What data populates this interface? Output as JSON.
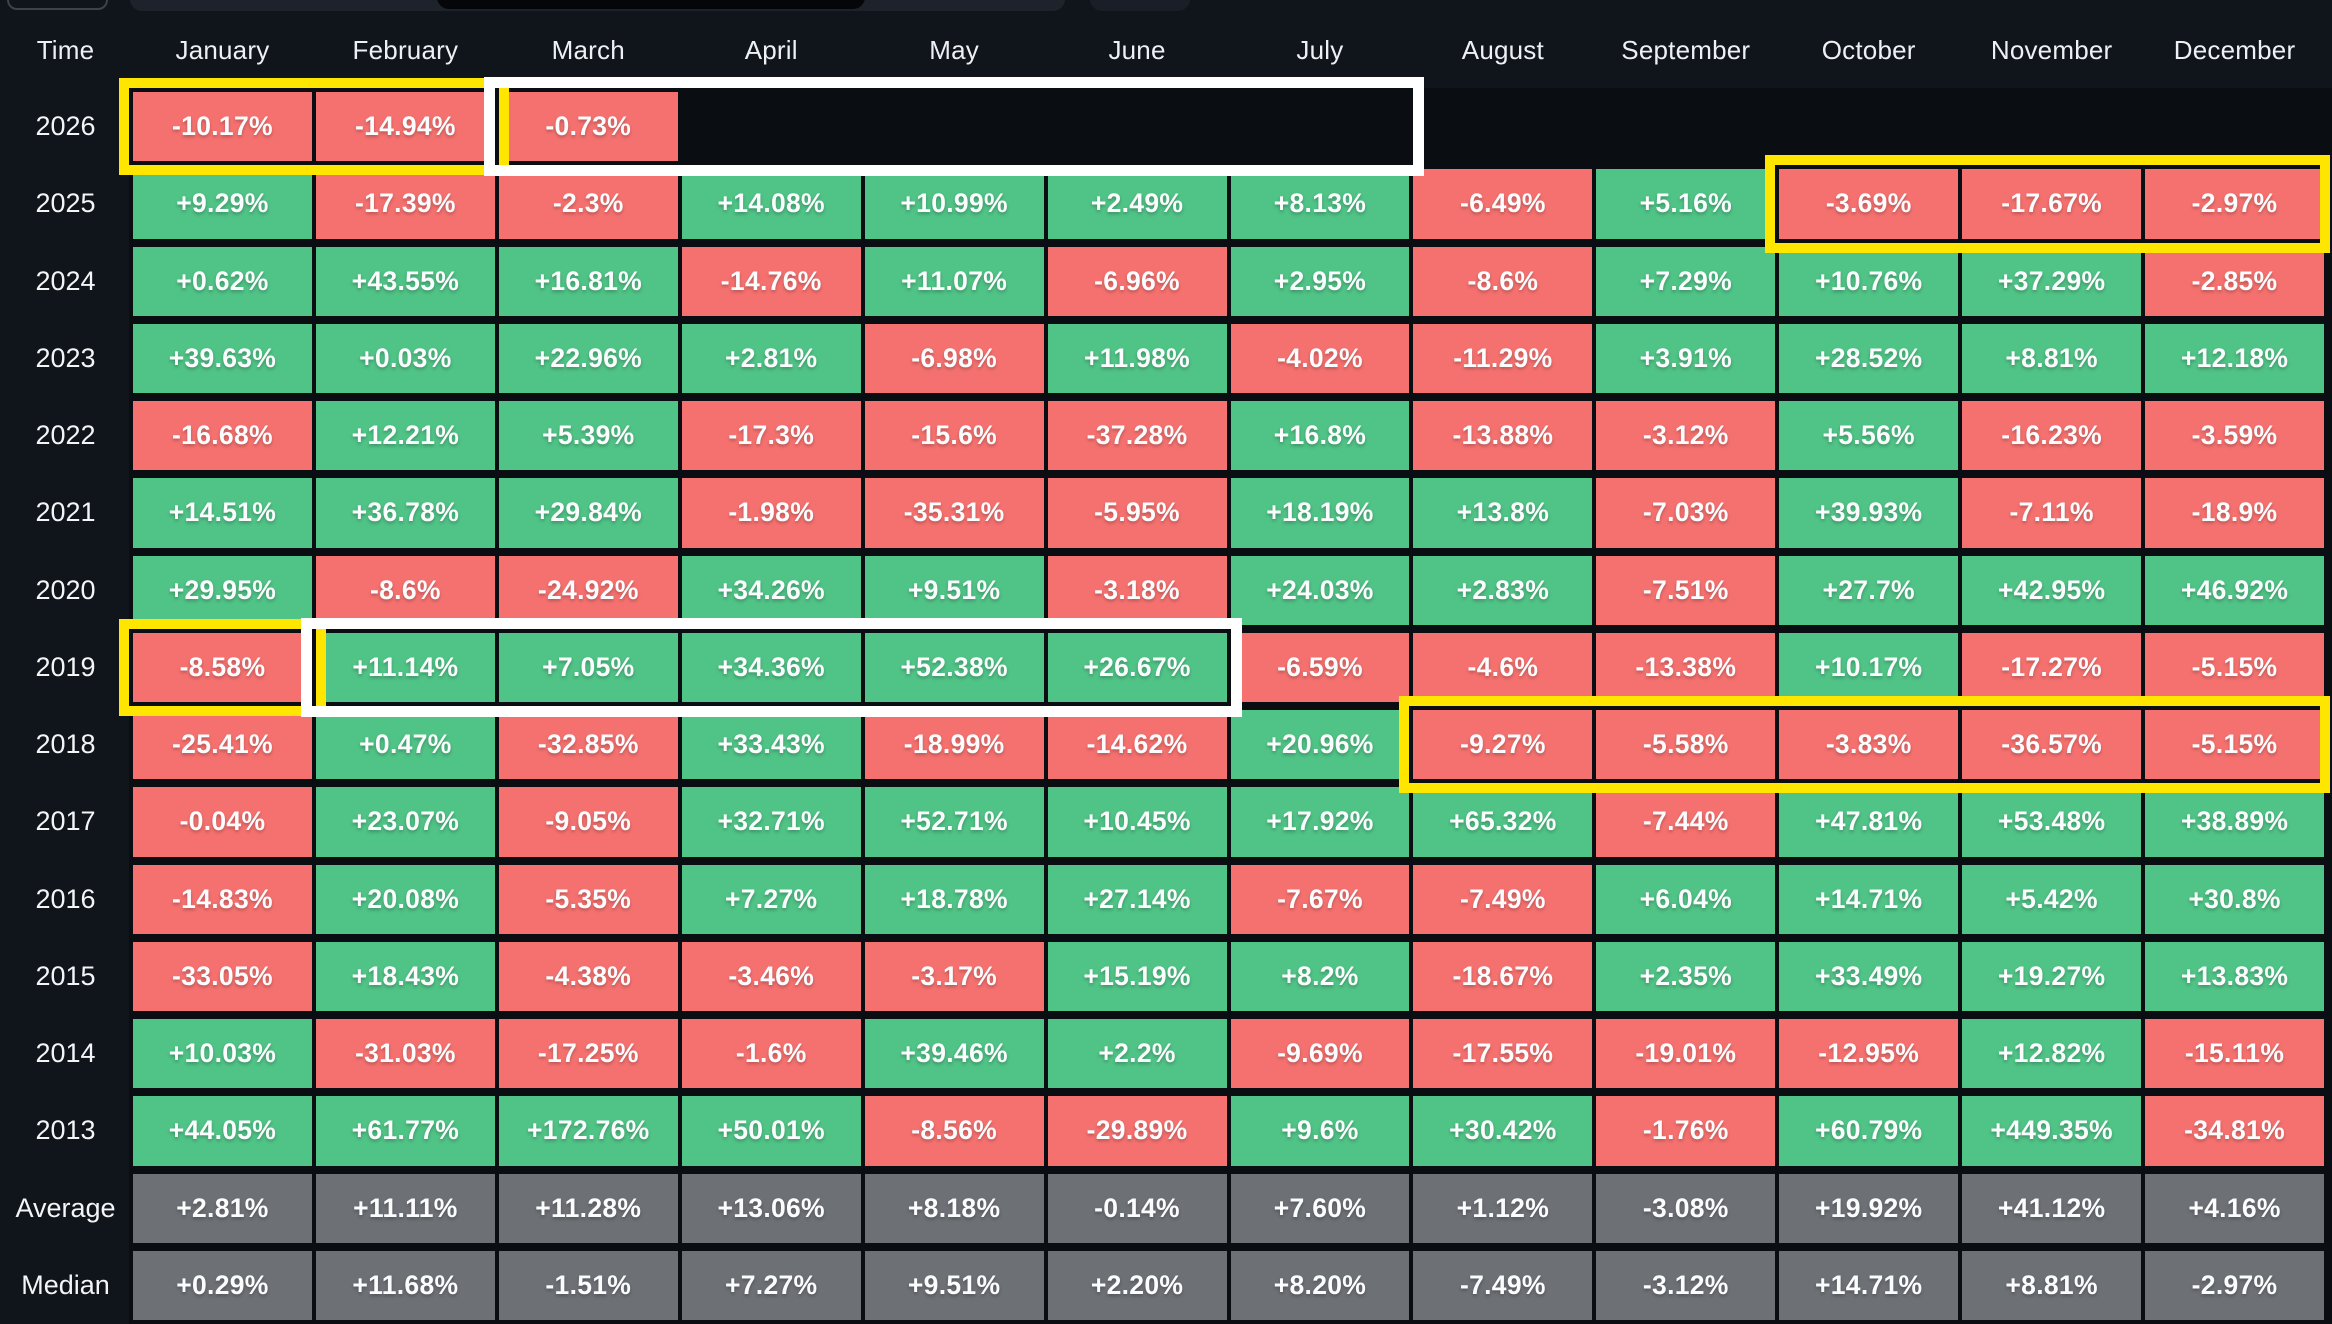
{
  "chart_data": {
    "type": "heatmap",
    "unit": "%",
    "time_header": "Time",
    "columns": [
      "January",
      "February",
      "March",
      "April",
      "May",
      "June",
      "July",
      "August",
      "September",
      "October",
      "November",
      "December"
    ],
    "rows": [
      {
        "label": "2026",
        "kind": "year",
        "values": [
          "-10.17%",
          "-14.94%",
          "-0.73%",
          "",
          "",
          "",
          "",
          "",
          "",
          "",
          "",
          ""
        ]
      },
      {
        "label": "2025",
        "kind": "year",
        "values": [
          "+9.29%",
          "-17.39%",
          "-2.3%",
          "+14.08%",
          "+10.99%",
          "+2.49%",
          "+8.13%",
          "-6.49%",
          "+5.16%",
          "-3.69%",
          "-17.67%",
          "-2.97%"
        ]
      },
      {
        "label": "2024",
        "kind": "year",
        "values": [
          "+0.62%",
          "+43.55%",
          "+16.81%",
          "-14.76%",
          "+11.07%",
          "-6.96%",
          "+2.95%",
          "-8.6%",
          "+7.29%",
          "+10.76%",
          "+37.29%",
          "-2.85%"
        ]
      },
      {
        "label": "2023",
        "kind": "year",
        "values": [
          "+39.63%",
          "+0.03%",
          "+22.96%",
          "+2.81%",
          "-6.98%",
          "+11.98%",
          "-4.02%",
          "-11.29%",
          "+3.91%",
          "+28.52%",
          "+8.81%",
          "+12.18%"
        ]
      },
      {
        "label": "2022",
        "kind": "year",
        "values": [
          "-16.68%",
          "+12.21%",
          "+5.39%",
          "-17.3%",
          "-15.6%",
          "-37.28%",
          "+16.8%",
          "-13.88%",
          "-3.12%",
          "+5.56%",
          "-16.23%",
          "-3.59%"
        ]
      },
      {
        "label": "2021",
        "kind": "year",
        "values": [
          "+14.51%",
          "+36.78%",
          "+29.84%",
          "-1.98%",
          "-35.31%",
          "-5.95%",
          "+18.19%",
          "+13.8%",
          "-7.03%",
          "+39.93%",
          "-7.11%",
          "-18.9%"
        ]
      },
      {
        "label": "2020",
        "kind": "year",
        "values": [
          "+29.95%",
          "-8.6%",
          "-24.92%",
          "+34.26%",
          "+9.51%",
          "-3.18%",
          "+24.03%",
          "+2.83%",
          "-7.51%",
          "+27.7%",
          "+42.95%",
          "+46.92%"
        ]
      },
      {
        "label": "2019",
        "kind": "year",
        "values": [
          "-8.58%",
          "+11.14%",
          "+7.05%",
          "+34.36%",
          "+52.38%",
          "+26.67%",
          "-6.59%",
          "-4.6%",
          "-13.38%",
          "+10.17%",
          "-17.27%",
          "-5.15%"
        ]
      },
      {
        "label": "2018",
        "kind": "year",
        "values": [
          "-25.41%",
          "+0.47%",
          "-32.85%",
          "+33.43%",
          "-18.99%",
          "-14.62%",
          "+20.96%",
          "-9.27%",
          "-5.58%",
          "-3.83%",
          "-36.57%",
          "-5.15%"
        ]
      },
      {
        "label": "2017",
        "kind": "year",
        "values": [
          "-0.04%",
          "+23.07%",
          "-9.05%",
          "+32.71%",
          "+52.71%",
          "+10.45%",
          "+17.92%",
          "+65.32%",
          "-7.44%",
          "+47.81%",
          "+53.48%",
          "+38.89%"
        ]
      },
      {
        "label": "2016",
        "kind": "year",
        "values": [
          "-14.83%",
          "+20.08%",
          "-5.35%",
          "+7.27%",
          "+18.78%",
          "+27.14%",
          "-7.67%",
          "-7.49%",
          "+6.04%",
          "+14.71%",
          "+5.42%",
          "+30.8%"
        ]
      },
      {
        "label": "2015",
        "kind": "year",
        "values": [
          "-33.05%",
          "+18.43%",
          "-4.38%",
          "-3.46%",
          "-3.17%",
          "+15.19%",
          "+8.2%",
          "-18.67%",
          "+2.35%",
          "+33.49%",
          "+19.27%",
          "+13.83%"
        ]
      },
      {
        "label": "2014",
        "kind": "year",
        "values": [
          "+10.03%",
          "-31.03%",
          "-17.25%",
          "-1.6%",
          "+39.46%",
          "+2.2%",
          "-9.69%",
          "-17.55%",
          "-19.01%",
          "-12.95%",
          "+12.82%",
          "-15.11%"
        ]
      },
      {
        "label": "2013",
        "kind": "year",
        "values": [
          "+44.05%",
          "+61.77%",
          "+172.76%",
          "+50.01%",
          "-8.56%",
          "-29.89%",
          "+9.6%",
          "+30.42%",
          "-1.76%",
          "+60.79%",
          "+449.35%",
          "-34.81%"
        ]
      },
      {
        "label": "Average",
        "kind": "summary",
        "values": [
          "+2.81%",
          "+11.11%",
          "+11.28%",
          "+13.06%",
          "+8.18%",
          "-0.14%",
          "+7.60%",
          "+1.12%",
          "-3.08%",
          "+19.92%",
          "+41.12%",
          "+4.16%"
        ]
      },
      {
        "label": "Median",
        "kind": "summary",
        "values": [
          "+0.29%",
          "+11.68%",
          "-1.51%",
          "+7.27%",
          "+9.51%",
          "+2.20%",
          "+8.20%",
          "-7.49%",
          "-3.12%",
          "+14.71%",
          "+8.81%",
          "-2.97%"
        ]
      }
    ]
  },
  "highlights": [
    {
      "row": "2026",
      "from": "January",
      "to": "February",
      "color": "yellow"
    },
    {
      "row": "2026",
      "from": "March",
      "to": "July",
      "color": "white"
    },
    {
      "row": "2025",
      "from": "October",
      "to": "December",
      "color": "yellow"
    },
    {
      "row": "2019",
      "from": "January",
      "to": "January",
      "color": "yellow"
    },
    {
      "row": "2019",
      "from": "February",
      "to": "June",
      "color": "white"
    },
    {
      "row": "2018",
      "from": "August",
      "to": "December",
      "color": "yellow"
    }
  ],
  "colors": {
    "positive": "#50c386",
    "negative": "#f5716f",
    "summary": "#6d7075",
    "background": "#10141b",
    "cells_backdrop": "#0a0d12",
    "highlight_yellow": "#ffe600",
    "highlight_white": "#ffffff",
    "text": "#f3f5f7"
  }
}
